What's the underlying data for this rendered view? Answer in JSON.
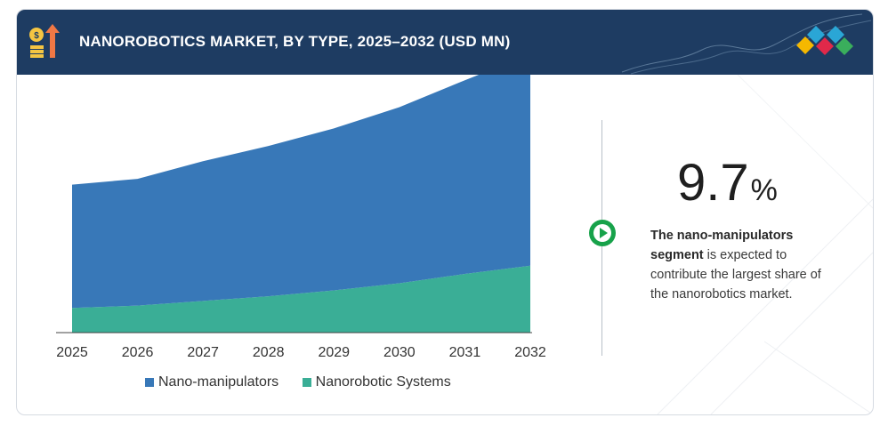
{
  "header": {
    "title": "NANOROBOTICS MARKET, BY TYPE, 2025–2032 (USD MN)"
  },
  "chart_data": {
    "type": "area",
    "stacked": true,
    "x": [
      "2025",
      "2026",
      "2027",
      "2028",
      "2029",
      "2030",
      "2031",
      "2032"
    ],
    "series": [
      {
        "name": "Nanorobotic Systems",
        "values": [
          21,
          23,
          27,
          31,
          36,
          42,
          50,
          57
        ],
        "color": "#3aae96"
      },
      {
        "name": "Nano-manipulators",
        "values": [
          105,
          108,
          119,
          128,
          138,
          150,
          165,
          180
        ],
        "color": "#3878b8"
      }
    ],
    "grid": false,
    "legend_position": "bottom",
    "y_axis_visible": false
  },
  "highlight": {
    "value": "9.7",
    "unit": "%",
    "bold_text": "The nano-manipulators segment",
    "text": " is expected to contribute the largest share of the nanorobotics market."
  },
  "colors": {
    "header_bg": "#1e3c62",
    "accent_green": "#17a24a",
    "deco_diamonds": [
      "#f5b800",
      "#2aa6d6",
      "#e0294a",
      "#3aae5c"
    ]
  }
}
